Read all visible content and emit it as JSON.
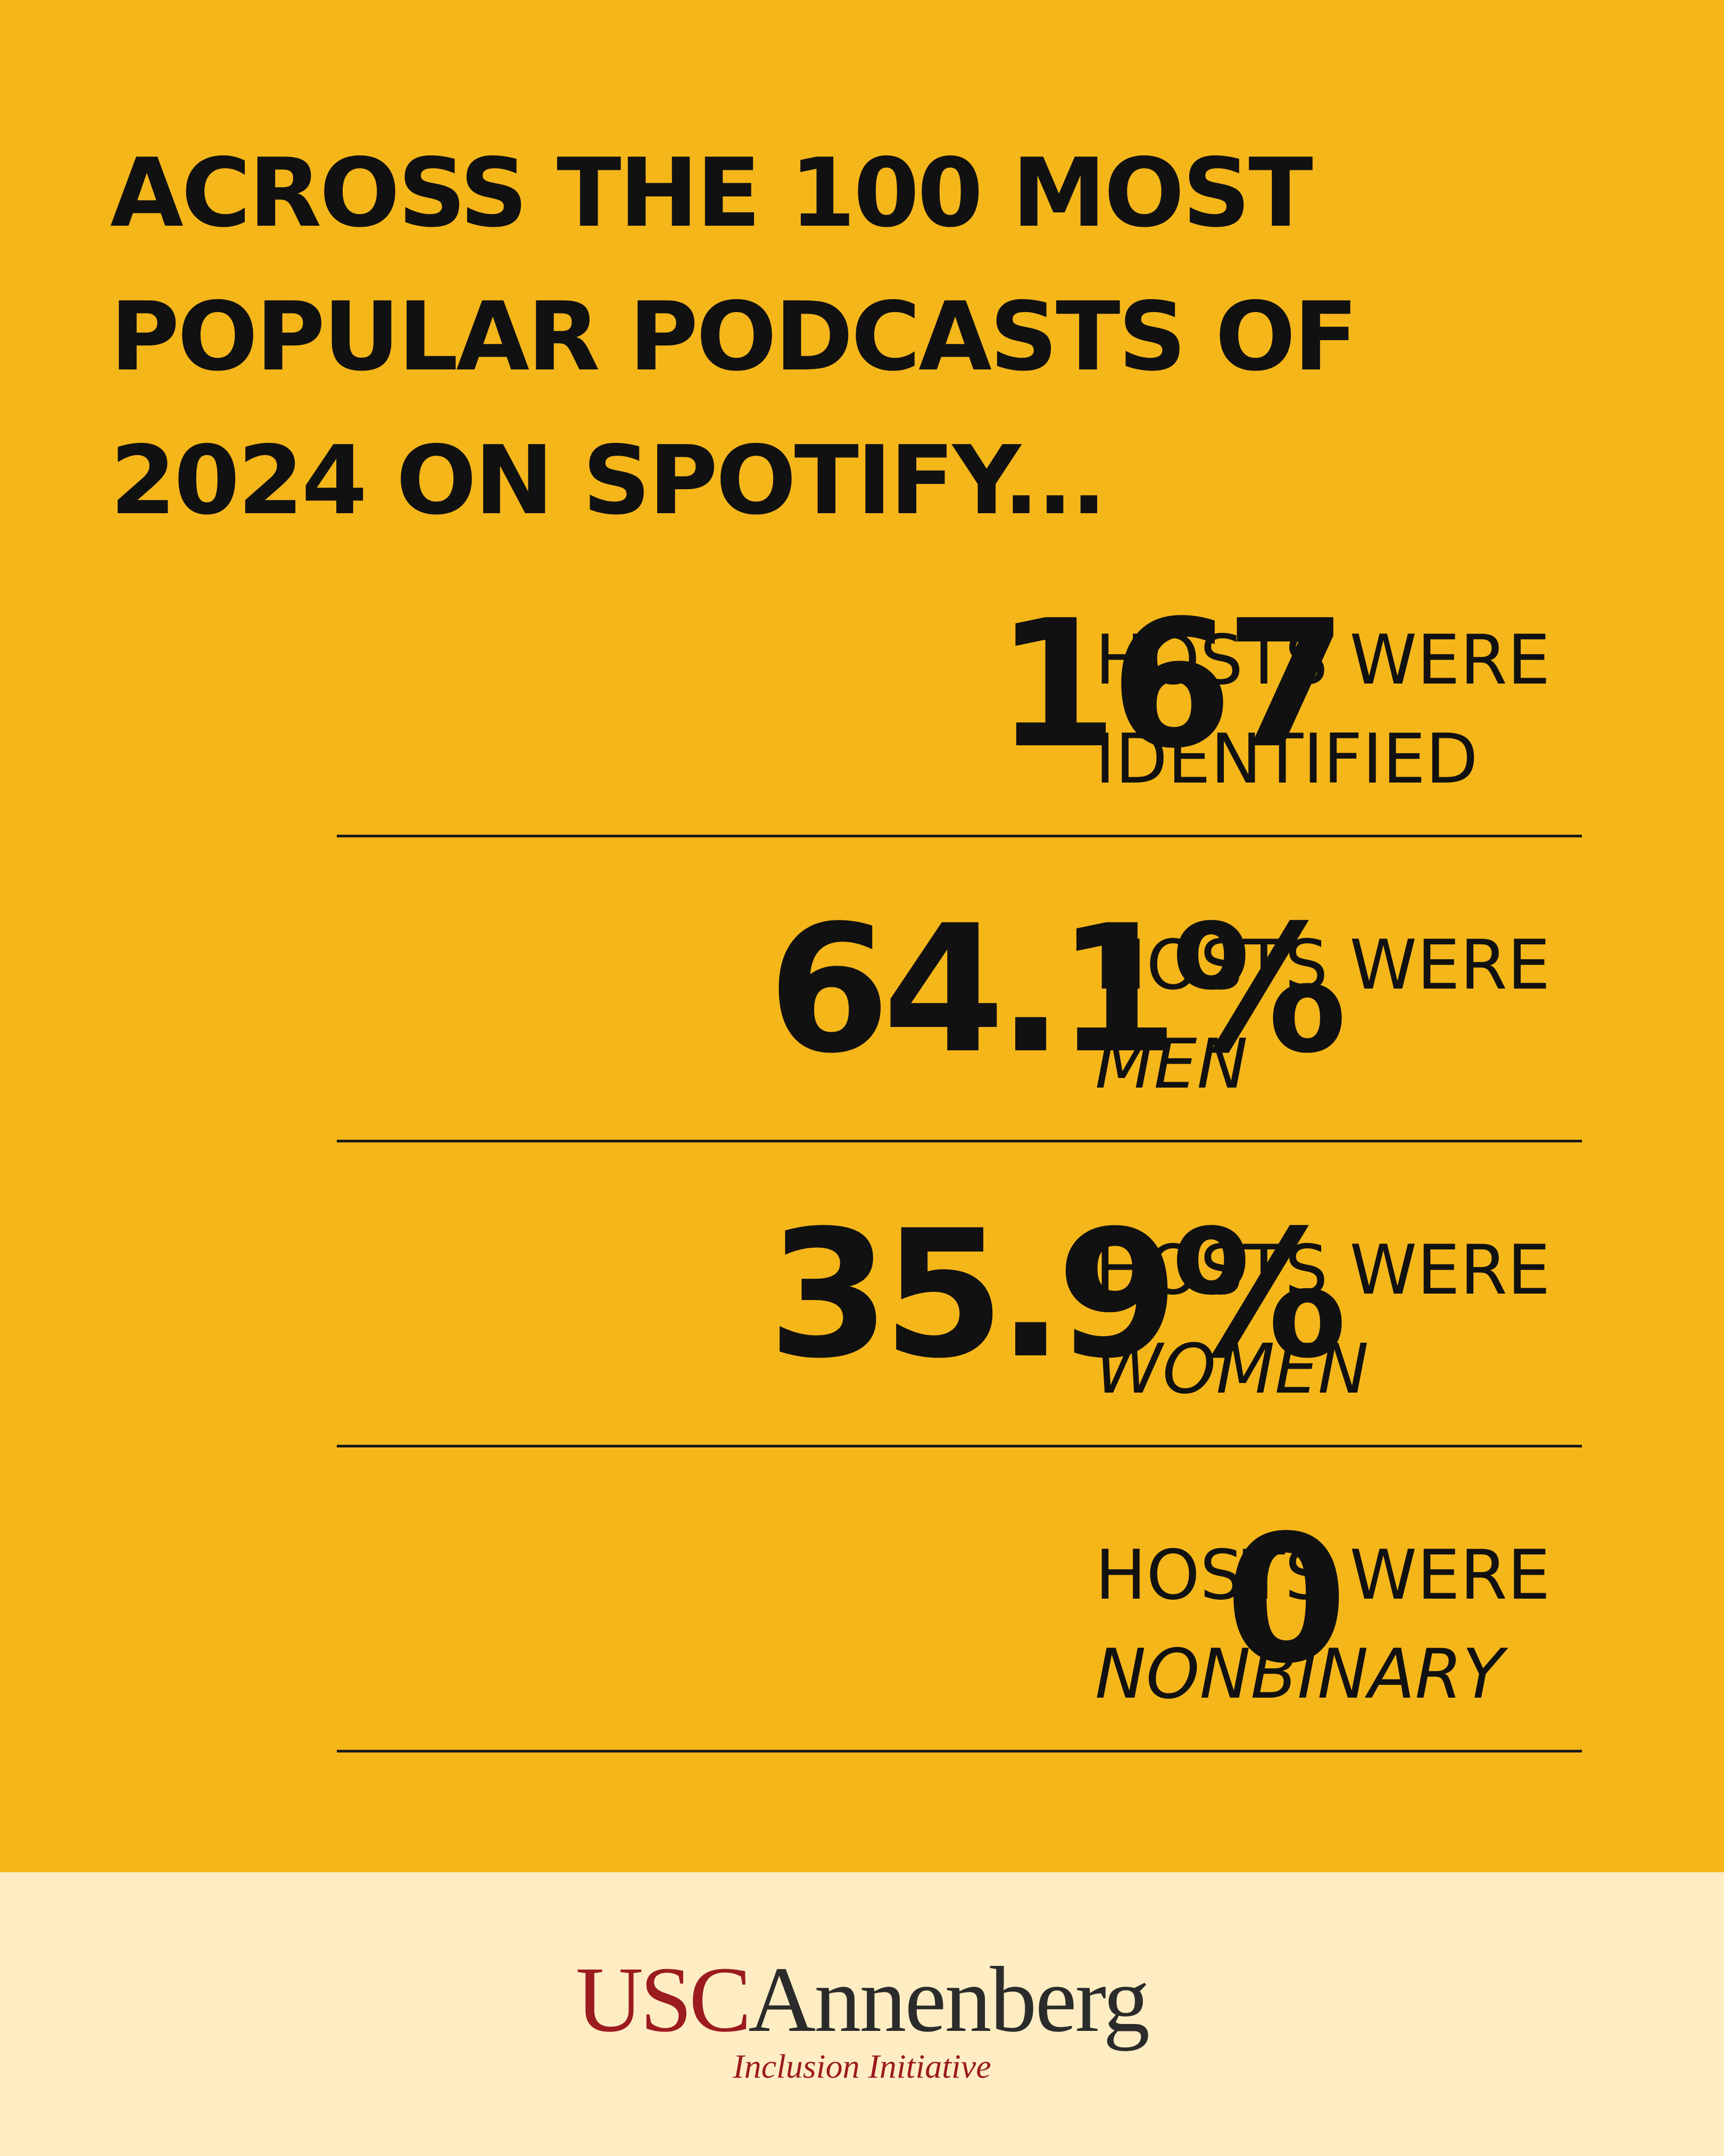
{
  "headline": {
    "lines": [
      "ACROSS THE 100 MOST",
      "POPULAR PODCASTS OF",
      "2024 ON SPOTIFY..."
    ]
  },
  "stats": [
    {
      "value": "167",
      "label_line1": "HOSTS WERE",
      "label_line2": "IDENTIFIED"
    },
    {
      "value": "64.1%",
      "label_line1": "HOSTS WERE",
      "label_line2": "MEN"
    },
    {
      "value": "35.9%",
      "label_line1": "HOSTS WERE",
      "label_line2": "WOMEN"
    },
    {
      "value": "0",
      "label_line1": "HOSTS WERE",
      "label_line2": "NONBINARY"
    }
  ],
  "footer": {
    "logo_usc": "USC",
    "logo_annenberg": "Annenberg",
    "tagline": "Inclusion Initiative"
  },
  "colors": {
    "main_background": "#F5B61A",
    "footer_background": "#FEEDC3",
    "text": "#111111",
    "usc_cardinal": "#9B1B1F"
  }
}
